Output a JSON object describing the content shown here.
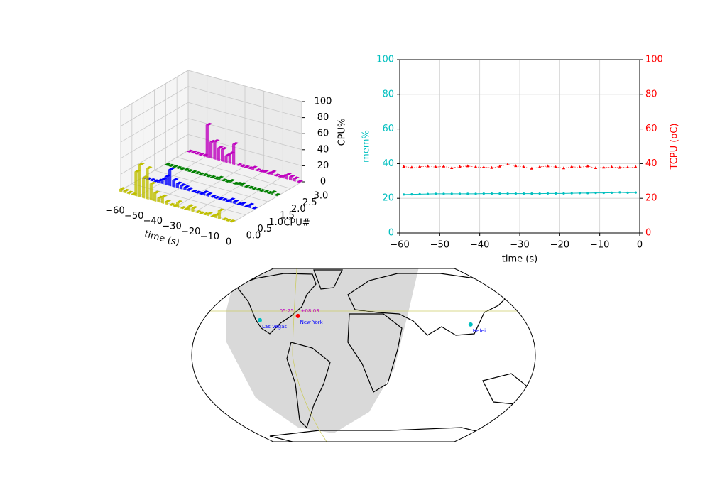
{
  "chart_data": [
    {
      "type": "bar3d",
      "xlabel": "time (s)",
      "ylabel": "CPU#",
      "zlabel": "CPU%",
      "xlim": [
        -60,
        0
      ],
      "xticks": [
        {
          "value": -60,
          "label": "−60"
        },
        {
          "value": -50,
          "label": "−50"
        },
        {
          "value": -40,
          "label": "−40"
        },
        {
          "value": -30,
          "label": "−30"
        },
        {
          "value": -20,
          "label": "−20"
        },
        {
          "value": -10,
          "label": "−10"
        },
        0
      ],
      "ylim": [
        0,
        3
      ],
      "yticks": [
        {
          "value": 0,
          "label": "0.0"
        },
        {
          "value": 0.5,
          "label": "0.5"
        },
        {
          "value": 1,
          "label": "1.0"
        },
        {
          "value": 1.5,
          "label": "1.5"
        },
        {
          "value": 2,
          "label": "2.0"
        },
        {
          "value": 2.5,
          "label": "2.5"
        },
        {
          "value": 3,
          "label": "3.0"
        }
      ],
      "zlim": [
        0,
        100
      ],
      "zticks": [
        0,
        20,
        40,
        60,
        80,
        100
      ],
      "x": [
        -59,
        -57,
        -55,
        -53,
        -51,
        -49,
        -47,
        -45,
        -43,
        -41,
        -39,
        -37,
        -35,
        -33,
        -31,
        -29,
        -27,
        -25,
        -23,
        -21,
        -19,
        -17,
        -15,
        -13,
        -11,
        -9,
        -7,
        -5,
        -3,
        -1
      ],
      "series": [
        {
          "y": 3,
          "color": "#bf00bf",
          "values": [
            0,
            0,
            0,
            0,
            0,
            40,
            20,
            22,
            15,
            15,
            8,
            12,
            25,
            0,
            0,
            0,
            0,
            2,
            0,
            0,
            1,
            0,
            3,
            0,
            0,
            2,
            5,
            4,
            3,
            0
          ]
        },
        {
          "y": 2,
          "color": "#008000",
          "values": [
            0,
            0,
            0,
            0,
            0,
            0,
            0,
            0,
            0,
            0,
            0,
            0,
            0,
            0,
            2,
            0,
            0,
            2,
            0,
            1,
            2,
            0,
            0,
            0,
            0,
            0,
            0,
            0,
            2,
            0
          ]
        },
        {
          "y": 1,
          "color": "#0000ff",
          "values": [
            0,
            0,
            0,
            0,
            2,
            5,
            10,
            20,
            8,
            5,
            4,
            3,
            2,
            0,
            0,
            0,
            3,
            2,
            0,
            0,
            0,
            0,
            0,
            3,
            2,
            0,
            2,
            0,
            3,
            0
          ]
        },
        {
          "y": 0,
          "color": "#bfbf00",
          "values": [
            3,
            2,
            1,
            0,
            30,
            40,
            25,
            38,
            20,
            10,
            5,
            8,
            3,
            0,
            0,
            6,
            0,
            0,
            5,
            4,
            0,
            0,
            0,
            2,
            0,
            3,
            10,
            0,
            0,
            0
          ]
        }
      ]
    },
    {
      "type": "line",
      "xlabel": "time (s)",
      "ylabel": "mem%",
      "y2label": "TCPU (oC)",
      "xlim": [
        -60,
        0
      ],
      "xticks": [
        {
          "value": -60,
          "label": "−60"
        },
        {
          "value": -50,
          "label": "−50"
        },
        {
          "value": -40,
          "label": "−40"
        },
        {
          "value": -30,
          "label": "−30"
        },
        {
          "value": -20,
          "label": "−20"
        },
        {
          "value": -10,
          "label": "−10"
        },
        0
      ],
      "ylim": [
        0,
        100
      ],
      "yticks": [
        0,
        20,
        40,
        60,
        80,
        100
      ],
      "y2lim": [
        0,
        100
      ],
      "y2ticks": [
        0,
        20,
        40,
        60,
        80,
        100
      ],
      "grid": true,
      "x": [
        -59,
        -57,
        -55,
        -53,
        -51,
        -49,
        -47,
        -45,
        -43,
        -41,
        -39,
        -37,
        -35,
        -33,
        -31,
        -29,
        -27,
        -25,
        -23,
        -21,
        -19,
        -17,
        -15,
        -13,
        -11,
        -9,
        -7,
        -5,
        -3,
        -1
      ],
      "series": [
        {
          "color": "#00bfbf",
          "values": [
            22.2,
            22.3,
            22.4,
            22.5,
            22.6,
            22.6,
            22.6,
            22.6,
            22.6,
            22.6,
            22.7,
            22.7,
            22.7,
            22.7,
            22.7,
            22.7,
            22.7,
            22.7,
            22.8,
            22.8,
            22.8,
            22.9,
            23.0,
            23.0,
            23.1,
            23.1,
            23.2,
            23.4,
            23.2,
            23.3
          ]
        },
        {
          "color": "#ff0000",
          "axis": "y2",
          "values": [
            38.3,
            37.8,
            38.2,
            38.5,
            38.0,
            38.4,
            37.5,
            38.3,
            38.6,
            38.1,
            37.9,
            37.6,
            38.4,
            39.6,
            38.7,
            38.0,
            37.2,
            38.1,
            38.6,
            38.0,
            37.4,
            38.2,
            37.9,
            38.5,
            37.5,
            37.8,
            38.0,
            37.7,
            37.9,
            38.0
          ]
        }
      ]
    },
    {
      "type": "map",
      "cities": [
        {
          "name": "Las Vegas",
          "lon": -115.1,
          "lat": 36.2,
          "color": "#00bfbf"
        },
        {
          "name": "New York",
          "lon": -74.0,
          "lat": 40.7,
          "color": "#ff0000"
        },
        {
          "name": "Hefei",
          "lon": 117.3,
          "lat": 31.8,
          "color": "#00bfbf"
        }
      ],
      "annotations": [
        "05:25",
        "+08:03"
      ]
    }
  ]
}
